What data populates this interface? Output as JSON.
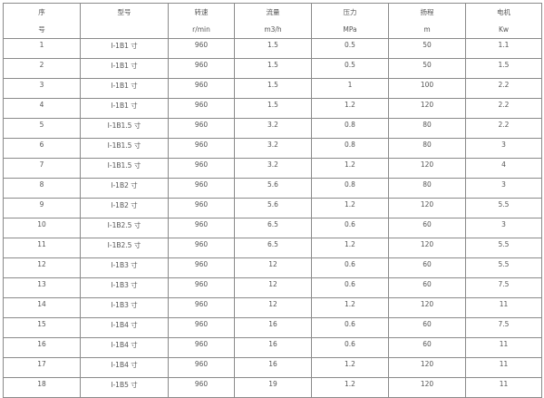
{
  "table": {
    "headers": [
      {
        "line1": "序",
        "line2": "号"
      },
      {
        "line1": "型号",
        "line2": ""
      },
      {
        "line1": "转速",
        "line2": "r/min"
      },
      {
        "line1": "流量",
        "line2": "m3/h"
      },
      {
        "line1": "压力",
        "line2": "MPa"
      },
      {
        "line1": "扬程",
        "line2": "m"
      },
      {
        "line1": "电机",
        "line2": "Kw"
      }
    ],
    "rows": [
      [
        "1",
        "I-1B1 寸",
        "960",
        "1.5",
        "0.5",
        "50",
        "1.1"
      ],
      [
        "2",
        "I-1B1 寸",
        "960",
        "1.5",
        "0.5",
        "50",
        "1.5"
      ],
      [
        "3",
        "I-1B1 寸",
        "960",
        "1.5",
        "1",
        "100",
        "2.2"
      ],
      [
        "4",
        "I-1B1 寸",
        "960",
        "1.5",
        "1.2",
        "120",
        "2.2"
      ],
      [
        "5",
        "I-1B1.5 寸",
        "960",
        "3.2",
        "0.8",
        "80",
        "2.2"
      ],
      [
        "6",
        "I-1B1.5 寸",
        "960",
        "3.2",
        "0.8",
        "80",
        "3"
      ],
      [
        "7",
        "I-1B1.5 寸",
        "960",
        "3.2",
        "1.2",
        "120",
        "4"
      ],
      [
        "8",
        "I-1B2 寸",
        "960",
        "5.6",
        "0.8",
        "80",
        "3"
      ],
      [
        "9",
        "I-1B2 寸",
        "960",
        "5.6",
        "1.2",
        "120",
        "5.5"
      ],
      [
        "10",
        "I-1B2.5 寸",
        "960",
        "6.5",
        "0.6",
        "60",
        "3"
      ],
      [
        "11",
        "I-1B2.5 寸",
        "960",
        "6.5",
        "1.2",
        "120",
        "5.5"
      ],
      [
        "12",
        "I-1B3 寸",
        "960",
        "12",
        "0.6",
        "60",
        "5.5"
      ],
      [
        "13",
        "I-1B3 寸",
        "960",
        "12",
        "0.6",
        "60",
        "7.5"
      ],
      [
        "14",
        "I-1B3 寸",
        "960",
        "12",
        "1.2",
        "120",
        "11"
      ],
      [
        "15",
        "I-1B4 寸",
        "960",
        "16",
        "0.6",
        "60",
        "7.5"
      ],
      [
        "16",
        "I-1B4 寸",
        "960",
        "16",
        "0.6",
        "60",
        "11"
      ],
      [
        "17",
        "I-1B4 寸",
        "960",
        "16",
        "1.2",
        "120",
        "11"
      ],
      [
        "18",
        "I-1B5 寸",
        "960",
        "19",
        "1.2",
        "120",
        "11"
      ]
    ]
  }
}
